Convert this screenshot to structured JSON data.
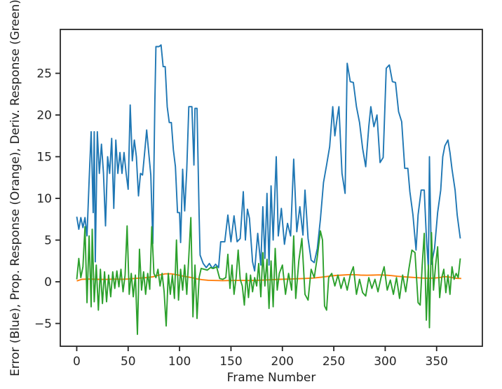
{
  "figure": {
    "background": "#ffffff",
    "axes_color": "#262626",
    "text_color": "#1f1f1f"
  },
  "chart_data": {
    "type": "line",
    "title": "",
    "xlabel": "Frame Number",
    "ylabel": "Error (Blue), Prop. Response (Orange), Deriv. Response (Green)",
    "grid": false,
    "legend_position": "none",
    "xlim": [
      -16,
      394.5
    ],
    "ylim": [
      -7.73,
      30.26
    ],
    "x_ticks": [
      0,
      50,
      100,
      150,
      200,
      250,
      300,
      350
    ],
    "y_ticks": [
      -5,
      0,
      5,
      10,
      15,
      20,
      25
    ],
    "series": [
      {
        "name": "Error",
        "color": "#1f77b4",
        "x": [
          0,
          2,
          4,
          6,
          8,
          10,
          12,
          14,
          16,
          17,
          18,
          20,
          22,
          24,
          26,
          28,
          30,
          32,
          34,
          36,
          38,
          40,
          42,
          44,
          46,
          48,
          50,
          52,
          54,
          56,
          58,
          60,
          62,
          64,
          66,
          68,
          70,
          72,
          74,
          76,
          77,
          80,
          82,
          84,
          86,
          88,
          90,
          92,
          94,
          96,
          98,
          100,
          101,
          103,
          105,
          107,
          109,
          112,
          114,
          115,
          117,
          119,
          120,
          123,
          126,
          129,
          132,
          135,
          138,
          140,
          144,
          147,
          150,
          153,
          156,
          159,
          162,
          164,
          166,
          168,
          171,
          173,
          176,
          179,
          181,
          183,
          185,
          187,
          189,
          191,
          194,
          196,
          199,
          202,
          205,
          208,
          211,
          214,
          217,
          220,
          222,
          225,
          228,
          231,
          234,
          237,
          240,
          243,
          246,
          249,
          251,
          253,
          255,
          258,
          261,
          263,
          266,
          269,
          272,
          275,
          278,
          281,
          284,
          286,
          289,
          292,
          295,
          298,
          301,
          304,
          307,
          310,
          313,
          316,
          319,
          322,
          324,
          327,
          330,
          332,
          335,
          338,
          340,
          342,
          343,
          345,
          348,
          351,
          354,
          356,
          358,
          361,
          363,
          365,
          368,
          370,
          373
        ],
        "values": [
          7.8,
          6.3,
          7.7,
          6.5,
          7.7,
          5.5,
          12.1,
          18,
          8.3,
          18,
          2.4,
          18,
          13,
          16.5,
          13,
          6.7,
          15,
          13,
          17.2,
          8.8,
          17,
          13,
          15.5,
          13,
          15.5,
          13,
          11.1,
          21.2,
          14.5,
          17,
          15,
          10.3,
          13,
          12.8,
          15.5,
          18.2,
          15.5,
          12.8,
          4.6,
          21.7,
          28.2,
          28.2,
          28.4,
          25.8,
          25.8,
          21,
          19.1,
          19.1,
          15.8,
          13.8,
          8.3,
          8.3,
          4.7,
          13.5,
          8.5,
          13.5,
          21,
          21,
          14,
          20.8,
          20.8,
          8,
          3.2,
          2.2,
          1.7,
          2.2,
          1.6,
          2.1,
          1.7,
          4.8,
          4.8,
          8,
          4.8,
          7.9,
          4.8,
          5.2,
          10.8,
          5,
          8.7,
          7.6,
          2.4,
          1.3,
          5.8,
          2,
          9,
          2.8,
          10.6,
          2,
          11.5,
          5,
          15,
          5.5,
          8.8,
          4.5,
          7,
          5.5,
          14.7,
          6,
          9,
          5.6,
          11,
          5.2,
          2.6,
          2.3,
          4,
          7.5,
          11.9,
          14,
          16.2,
          21,
          17.5,
          19.4,
          21,
          13,
          10.6,
          26.2,
          24,
          23.9,
          21,
          19.1,
          16,
          13.8,
          18.6,
          21,
          18.6,
          20,
          14.3,
          14.9,
          25.6,
          26,
          24,
          23.9,
          20.4,
          19.2,
          13.6,
          13.6,
          10.8,
          8,
          3.8,
          8,
          11,
          11,
          5.4,
          1.6,
          15,
          2.1,
          4,
          8.3,
          11,
          15,
          16.3,
          17,
          15.5,
          13.5,
          11,
          8,
          5.2
        ]
      },
      {
        "name": "Prop. Response",
        "color": "#ff7f0e",
        "x": [
          0,
          5,
          12,
          20,
          28,
          36,
          44,
          50,
          56,
          62,
          68,
          74,
          80,
          86,
          92,
          97,
          102,
          107,
          112,
          117,
          122,
          128,
          135,
          142,
          150,
          158,
          166,
          174,
          182,
          190,
          198,
          206,
          214,
          222,
          230,
          238,
          246,
          252,
          258,
          264,
          270,
          276,
          282,
          288,
          294,
          300,
          306,
          312,
          318,
          324,
          330,
          336,
          342,
          348,
          353,
          357,
          361,
          365,
          369,
          374
        ],
        "values": [
          0.1,
          0.3,
          0.32,
          0.3,
          0.28,
          0.32,
          0.3,
          0.33,
          0.4,
          0.45,
          0.5,
          0.6,
          0.8,
          0.95,
          0.95,
          0.85,
          0.72,
          0.6,
          0.5,
          0.35,
          0.25,
          0.18,
          0.15,
          0.14,
          0.15,
          0.16,
          0.15,
          0.17,
          0.2,
          0.25,
          0.3,
          0.32,
          0.36,
          0.4,
          0.45,
          0.55,
          0.68,
          0.76,
          0.8,
          0.85,
          0.85,
          0.8,
          0.78,
          0.8,
          0.83,
          0.8,
          0.74,
          0.66,
          0.6,
          0.55,
          0.5,
          0.45,
          0.42,
          0.45,
          0.5,
          0.62,
          0.6,
          0.5,
          0.42,
          0.4
        ]
      },
      {
        "name": "Deriv. Response",
        "color": "#2ca02c",
        "x": [
          0,
          2,
          4,
          6,
          8,
          10,
          12,
          14,
          15,
          17,
          19,
          21,
          23,
          25,
          27,
          29,
          31,
          33,
          35,
          37,
          39,
          41,
          43,
          45,
          47,
          49,
          51,
          53,
          55,
          57,
          59,
          61,
          63,
          65,
          67,
          69,
          71,
          73,
          75,
          77,
          79,
          81,
          83,
          85,
          87,
          89,
          91,
          93,
          95,
          97,
          99,
          101,
          103,
          105,
          107,
          109,
          111,
          113,
          115,
          117,
          119,
          121,
          124,
          127,
          130,
          133,
          136,
          139,
          142,
          145,
          147,
          149,
          151,
          153,
          155,
          157,
          159,
          161,
          163,
          165,
          167,
          169,
          171,
          173,
          175,
          177,
          179,
          181,
          183,
          185,
          187,
          189,
          191,
          193,
          195,
          197,
          200,
          203,
          206,
          209,
          211,
          213,
          216,
          219,
          222,
          225,
          228,
          231,
          234,
          237,
          239,
          241,
          243,
          245,
          248,
          251,
          254,
          257,
          260,
          263,
          266,
          269,
          272,
          275,
          278,
          281,
          284,
          287,
          290,
          293,
          296,
          299,
          302,
          305,
          308,
          311,
          314,
          317,
          320,
          323,
          326,
          329,
          332,
          334,
          336,
          338,
          340,
          342,
          343,
          345,
          347,
          349,
          351,
          353,
          355,
          357,
          359,
          361,
          363,
          365,
          367,
          369,
          371,
          373
        ],
        "values": [
          0.3,
          2.8,
          0.5,
          1.8,
          6.6,
          -2.5,
          5.5,
          -3,
          6.3,
          -2.4,
          2,
          -3.4,
          1.5,
          -2.6,
          1.2,
          -2.4,
          0.8,
          -1.8,
          1.2,
          -0.8,
          1.3,
          -0.6,
          1.5,
          -1.2,
          0.8,
          6.7,
          -1.5,
          1,
          -1.8,
          0.8,
          -6.3,
          3.9,
          -1,
          1.2,
          -1.5,
          1,
          -0.9,
          6.6,
          1,
          0.5,
          1.5,
          -0.5,
          1,
          -1.2,
          -5.3,
          1,
          -1.5,
          0.8,
          -2,
          5,
          -2.2,
          1.5,
          -1,
          2,
          -1.5,
          3,
          7.7,
          -4.2,
          2,
          -4.4,
          0.5,
          1.6,
          1.5,
          1.4,
          1.7,
          1.6,
          1.8,
          0.4,
          0.3,
          0.5,
          3.3,
          -0.8,
          2,
          -1.5,
          0.5,
          3.8,
          0.3,
          -0.5,
          -2.8,
          1,
          -1.9,
          0.8,
          -1.2,
          0.5,
          -0.5,
          2.2,
          -1.8,
          3.5,
          -0.5,
          2.7,
          -3.2,
          2.5,
          -3,
          4,
          -1,
          1,
          2,
          -1.5,
          1,
          -1,
          5.5,
          -2,
          2.5,
          5.2,
          -1.5,
          -2.2,
          1.5,
          0.5,
          3,
          6.1,
          5,
          -2.9,
          -3.4,
          0.5,
          1,
          -0.5,
          0.8,
          -0.8,
          0.5,
          -1,
          0.8,
          1.8,
          -1.5,
          0.3,
          -1.3,
          -1.7,
          0.5,
          -0.8,
          0.3,
          -1.2,
          0.5,
          1.8,
          -1,
          0.2,
          -1.5,
          0.5,
          -2,
          0.8,
          -1.2,
          1.5,
          3.8,
          3.5,
          -2.5,
          -2.8,
          2,
          5.8,
          -4.6,
          2,
          -5.5,
          5.9,
          -1,
          2,
          4.2,
          -1.9,
          0.5,
          1.5,
          -1.3,
          0.8,
          -1.5,
          1.8,
          0.3,
          1,
          0.5,
          2.8
        ]
      }
    ]
  }
}
